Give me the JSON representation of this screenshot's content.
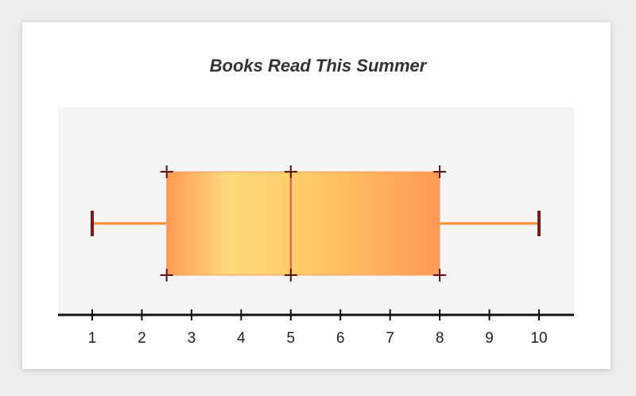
{
  "chart_data": {
    "type": "boxplot",
    "title": "Books Read This Summer",
    "xlabel": "",
    "ylabel": "",
    "xlim": [
      1,
      10
    ],
    "ticks": [
      1,
      2,
      3,
      4,
      5,
      6,
      7,
      8,
      9,
      10
    ],
    "tick_labels": [
      "1",
      "2",
      "3",
      "4",
      "5",
      "6",
      "7",
      "8",
      "9",
      "10"
    ],
    "box": {
      "min": 1,
      "q1": 2.5,
      "median": 5,
      "q3": 8,
      "max": 10
    },
    "grid": false,
    "legend": "none"
  },
  "colors": {
    "box_edge": "#ff9a55",
    "box_center": "#ffd97a",
    "whisker": "#ff8a2a",
    "marker": "#5a1010",
    "axis": "#111111",
    "plot_bg": "#f5f5f5"
  }
}
